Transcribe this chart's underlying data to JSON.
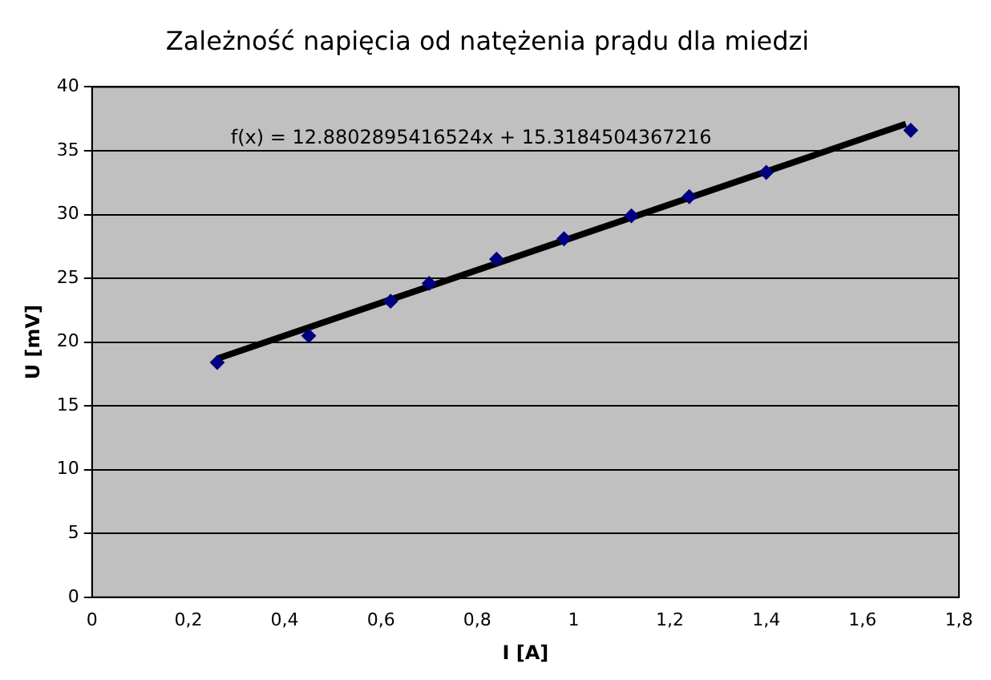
{
  "chart_data": {
    "type": "scatter",
    "title": "Zależność napięcia od natężenia prądu dla miedzi",
    "xlabel": "I [A]",
    "ylabel": "U [mV]",
    "annotations": [
      "f(x) = 12.8802895416524x + 15.3184504367216"
    ],
    "x": [
      0.26,
      0.45,
      0.62,
      0.7,
      0.84,
      0.98,
      1.12,
      1.24,
      1.4,
      1.7
    ],
    "series": [
      {
        "color": "#000080",
        "values": [
          18.4,
          20.5,
          23.2,
          24.6,
          26.5,
          28.1,
          29.9,
          31.4,
          33.3,
          36.6
        ]
      },
      {
        "type": "line",
        "color": "#000000",
        "x": [
          0.26,
          1.69
        ],
        "values": [
          18.7,
          37.1
        ],
        "marker": "none"
      }
    ],
    "xlim": [
      0,
      1.8
    ],
    "xticks": [
      0,
      {
        "value": 0.2,
        "label": "0,2"
      },
      {
        "value": 0.4,
        "label": "0,4"
      },
      {
        "value": 0.6,
        "label": "0,6"
      },
      {
        "value": 0.8,
        "label": "0,8"
      },
      1,
      {
        "value": 1.2,
        "label": "1,2"
      },
      {
        "value": 1.4,
        "label": "1,4"
      },
      {
        "value": 1.6,
        "label": "1,6"
      },
      {
        "value": 1.8,
        "label": "1,8"
      }
    ],
    "ylim": [
      0,
      40
    ],
    "yticks": [
      0,
      5,
      10,
      15,
      20,
      25,
      30,
      35,
      40
    ],
    "grid": "y",
    "legend": false,
    "marker": "diamond"
  }
}
